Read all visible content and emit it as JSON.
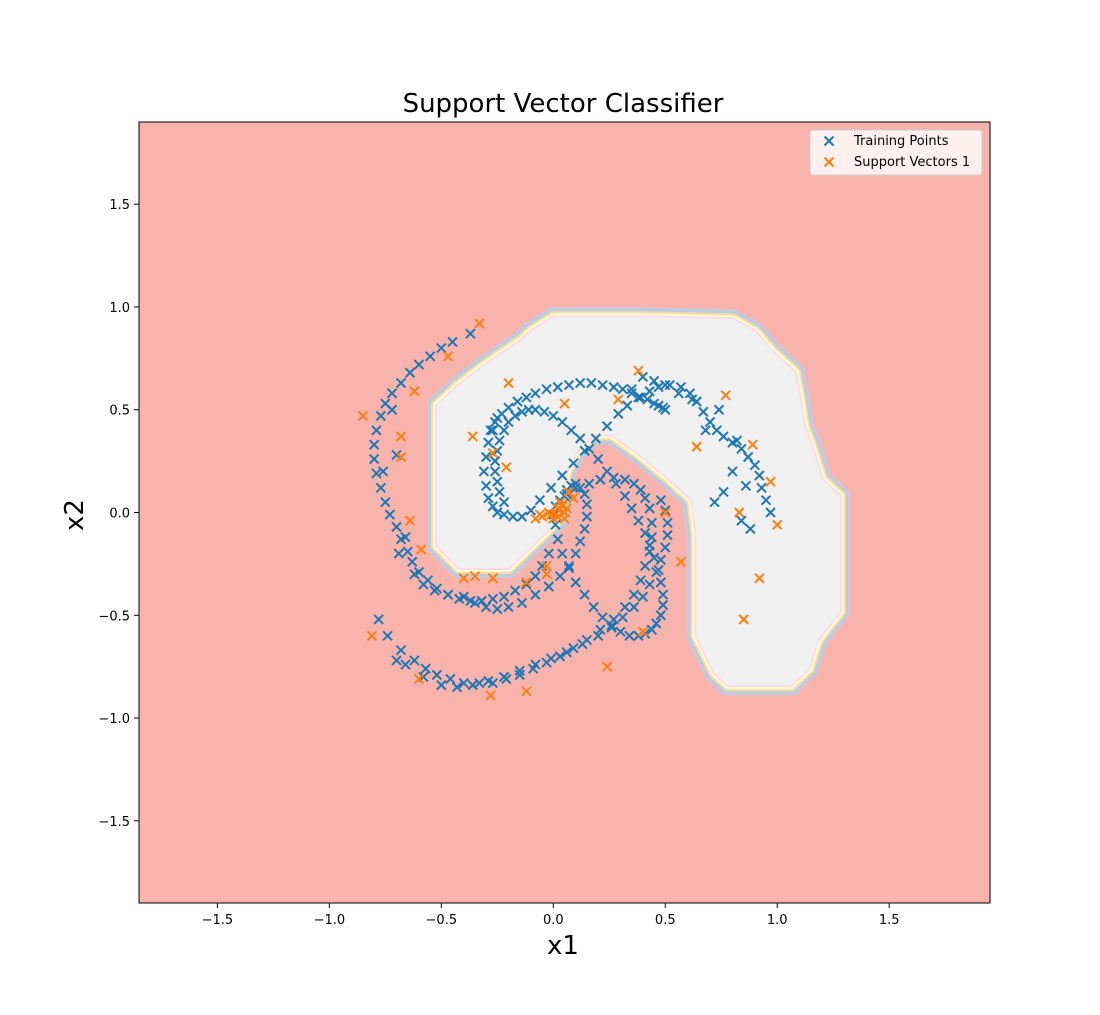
{
  "chart_data": {
    "type": "scatter",
    "title": "Support Vector Classifier",
    "xlabel": "x1",
    "ylabel": "x2",
    "xlim": [
      -1.85,
      1.95
    ],
    "ylim": [
      -1.9,
      1.9
    ],
    "xticks": [
      -1.5,
      -1.0,
      -0.5,
      0.0,
      0.5,
      1.0,
      1.5
    ],
    "yticks": [
      -1.5,
      -1.0,
      -0.5,
      0.0,
      0.5,
      1.0,
      1.5
    ],
    "xtick_labels": [
      "−1.5",
      "−1.0",
      "−0.5",
      "0.0",
      "0.5",
      "1.0",
      "1.5"
    ],
    "ytick_labels": [
      "−1.5",
      "−1.0",
      "−0.5",
      "0.0",
      "0.5",
      "1.0",
      "1.5"
    ],
    "grid": false,
    "legend_position": "top-right",
    "background_region_color": "#f9b3ad",
    "inner_region_color": "#f0f0f0",
    "boundary_colors": [
      "#c9c9dc",
      "#b3cde3",
      "#fed9a6",
      "#ffffcc",
      "#fddaec"
    ],
    "decision_region": [
      [
        -0.52,
        0.52
      ],
      [
        -0.52,
        -0.16
      ],
      [
        -0.42,
        -0.27
      ],
      [
        -0.2,
        -0.27
      ],
      [
        0.02,
        -0.04
      ],
      [
        0.06,
        0.2
      ],
      [
        0.1,
        0.29
      ],
      [
        0.18,
        0.38
      ],
      [
        0.26,
        0.38
      ],
      [
        0.4,
        0.27
      ],
      [
        0.52,
        0.16
      ],
      [
        0.62,
        0.06
      ],
      [
        0.64,
        -0.12
      ],
      [
        0.64,
        -0.4
      ],
      [
        0.64,
        -0.6
      ],
      [
        0.72,
        -0.78
      ],
      [
        0.78,
        -0.84
      ],
      [
        1.06,
        -0.84
      ],
      [
        1.14,
        -0.76
      ],
      [
        1.18,
        -0.62
      ],
      [
        1.28,
        -0.48
      ],
      [
        1.28,
        -0.2
      ],
      [
        1.28,
        0.08
      ],
      [
        1.2,
        0.16
      ],
      [
        1.16,
        0.3
      ],
      [
        1.12,
        0.42
      ],
      [
        1.1,
        0.56
      ],
      [
        1.08,
        0.68
      ],
      [
        0.98,
        0.78
      ],
      [
        0.9,
        0.88
      ],
      [
        0.8,
        0.94
      ],
      [
        0.4,
        0.95
      ],
      [
        0.0,
        0.95
      ],
      [
        -0.1,
        0.88
      ],
      [
        -0.14,
        0.84
      ],
      [
        -0.3,
        0.72
      ],
      [
        -0.42,
        0.62
      ]
    ],
    "series": [
      {
        "name": "Training Points",
        "color": "#1f77b4",
        "marker": "x",
        "x": [
          -0.37,
          -0.45,
          -0.5,
          -0.55,
          -0.6,
          -0.64,
          -0.68,
          -0.72,
          -0.75,
          -0.77,
          -0.79,
          -0.8,
          -0.8,
          -0.79,
          -0.77,
          -0.75,
          -0.73,
          -0.7,
          -0.68,
          -0.65,
          -0.63,
          -0.6,
          -0.56,
          -0.52,
          -0.47,
          -0.42,
          -0.37,
          -0.32,
          -0.27,
          -0.22,
          -0.17,
          -0.12,
          -0.08,
          -0.05,
          -0.02,
          -0.72,
          -0.76,
          -0.7,
          -0.69,
          -0.66,
          -0.62,
          -0.58,
          -0.53,
          -0.47,
          -0.4,
          -0.35,
          -0.3,
          -0.25,
          -0.2,
          -0.14,
          -0.08,
          -0.02,
          0.03,
          0.07,
          0.1,
          0.12,
          0.14,
          0.15,
          0.15,
          0.14,
          0.12,
          0.1,
          0.08,
          0.06,
          0.05,
          0.04,
          0.05,
          -0.78,
          -0.74,
          -0.68,
          -0.62,
          -0.57,
          -0.52,
          -0.46,
          -0.4,
          -0.33,
          -0.27,
          -0.21,
          -0.15,
          -0.09,
          -0.03,
          0.03,
          0.09,
          0.15,
          0.21,
          0.27,
          0.32,
          0.36,
          0.39,
          0.41,
          0.43,
          0.44,
          0.44,
          0.43,
          0.41,
          0.39,
          0.36,
          0.32,
          0.27,
          0.21,
          0.16,
          0.1,
          0.06,
          0.03,
          0.01,
          0.0,
          -0.7,
          -0.66,
          -0.58,
          -0.5,
          -0.43,
          -0.36,
          -0.29,
          -0.22,
          -0.15,
          -0.08,
          -0.01,
          0.06,
          0.13,
          0.2,
          0.26,
          0.31,
          0.36,
          0.4,
          0.43,
          0.46,
          0.48,
          0.5,
          0.51,
          0.51,
          0.5,
          0.48,
          -0.25,
          -0.27,
          -0.29,
          -0.3,
          -0.31,
          -0.3,
          -0.29,
          -0.27,
          -0.25,
          -0.22,
          -0.18,
          -0.14,
          -0.1,
          -0.06,
          -0.01,
          0.04,
          0.09,
          0.14,
          0.19,
          0.24,
          0.29,
          0.33,
          0.38,
          0.43,
          0.47,
          0.52,
          0.57,
          0.61,
          0.64,
          0.67,
          0.7,
          0.73,
          0.76,
          0.8,
          0.84,
          0.87,
          0.9,
          0.92,
          0.93,
          0.95,
          0.97,
          -0.28,
          -0.26,
          -0.23,
          -0.2,
          -0.16,
          -0.12,
          -0.08,
          -0.03,
          0.02,
          0.07,
          0.12,
          0.17,
          0.22,
          0.27,
          0.31,
          0.35,
          0.39,
          0.42,
          0.45,
          0.47,
          0.49,
          0.5,
          -0.22,
          -0.24,
          -0.25,
          -0.26,
          -0.26,
          -0.25,
          -0.24,
          -0.22,
          -0.2,
          -0.17,
          -0.14,
          -0.11,
          -0.08,
          -0.04,
          0.0,
          0.04,
          0.08,
          0.12,
          0.16,
          0.2,
          0.24,
          0.28,
          0.32,
          0.35,
          0.38,
          0.41,
          0.43,
          0.45,
          0.47,
          0.48,
          0.49,
          0.49,
          0.48,
          0.46,
          0.44,
          0.41,
          0.38,
          0.34,
          0.3,
          0.26,
          0.22,
          0.18,
          0.14,
          0.1,
          0.07,
          0.04,
          0.02,
          0.01,
          0.72,
          0.76,
          0.8,
          0.84,
          0.88,
          0.86,
          0.82,
          0.74,
          0.68,
          0.62,
          0.56,
          0.5,
          0.45,
          0.4,
          0.35
        ],
        "y": [
          0.87,
          0.83,
          0.8,
          0.76,
          0.72,
          0.68,
          0.63,
          0.58,
          0.53,
          0.47,
          0.4,
          0.33,
          0.26,
          0.19,
          0.12,
          0.05,
          -0.01,
          -0.07,
          -0.13,
          -0.19,
          -0.24,
          -0.29,
          -0.33,
          -0.37,
          -0.4,
          -0.42,
          -0.43,
          -0.43,
          -0.42,
          -0.41,
          -0.38,
          -0.35,
          -0.31,
          -0.26,
          -0.2,
          0.5,
          0.2,
          0.28,
          -0.2,
          -0.12,
          -0.3,
          -0.35,
          -0.38,
          -0.4,
          -0.41,
          -0.44,
          -0.46,
          -0.47,
          -0.46,
          -0.44,
          -0.4,
          -0.36,
          -0.31,
          -0.26,
          -0.2,
          -0.14,
          -0.08,
          -0.02,
          0.04,
          0.09,
          0.12,
          0.14,
          0.13,
          0.11,
          0.08,
          0.04,
          0.0,
          -0.52,
          -0.6,
          -0.67,
          -0.72,
          -0.76,
          -0.79,
          -0.81,
          -0.83,
          -0.83,
          -0.83,
          -0.81,
          -0.79,
          -0.76,
          -0.73,
          -0.7,
          -0.66,
          -0.62,
          -0.57,
          -0.52,
          -0.46,
          -0.4,
          -0.33,
          -0.26,
          -0.19,
          -0.12,
          -0.05,
          0.02,
          0.07,
          0.11,
          0.14,
          0.16,
          0.17,
          0.16,
          0.14,
          0.12,
          0.09,
          0.06,
          0.03,
          -0.01,
          -0.72,
          -0.74,
          -0.8,
          -0.84,
          -0.85,
          -0.84,
          -0.82,
          -0.8,
          -0.77,
          -0.74,
          -0.71,
          -0.68,
          -0.64,
          -0.6,
          -0.56,
          -0.51,
          -0.46,
          -0.41,
          -0.35,
          -0.29,
          -0.23,
          -0.17,
          -0.11,
          -0.05,
          0.01,
          0.06,
          0.46,
          0.4,
          0.34,
          0.27,
          0.2,
          0.13,
          0.07,
          0.03,
          0.0,
          -0.01,
          -0.02,
          -0.02,
          0.01,
          0.06,
          0.12,
          0.18,
          0.24,
          0.3,
          0.36,
          0.42,
          0.48,
          0.52,
          0.56,
          0.59,
          0.61,
          0.62,
          0.61,
          0.58,
          0.54,
          0.49,
          0.44,
          0.4,
          0.37,
          0.34,
          0.31,
          0.27,
          0.23,
          0.18,
          0.12,
          0.06,
          0.0,
          0.4,
          0.44,
          0.48,
          0.51,
          0.54,
          0.56,
          0.58,
          0.6,
          0.61,
          0.62,
          0.63,
          0.63,
          0.62,
          0.61,
          0.6,
          0.58,
          0.56,
          0.55,
          0.53,
          0.52,
          0.51,
          0.5,
          0.05,
          0.1,
          0.15,
          0.2,
          0.25,
          0.3,
          0.35,
          0.4,
          0.44,
          0.47,
          0.49,
          0.5,
          0.5,
          0.49,
          0.47,
          0.44,
          0.4,
          0.36,
          0.31,
          0.26,
          0.2,
          0.14,
          0.08,
          0.02,
          -0.04,
          -0.1,
          -0.16,
          -0.22,
          -0.28,
          -0.34,
          -0.4,
          -0.45,
          -0.5,
          -0.54,
          -0.57,
          -0.59,
          -0.6,
          -0.6,
          -0.58,
          -0.55,
          -0.51,
          -0.46,
          -0.4,
          -0.34,
          -0.27,
          -0.2,
          -0.13,
          -0.06,
          0.05,
          0.1,
          0.2,
          -0.04,
          -0.08,
          0.13,
          0.35,
          0.5,
          0.4,
          0.55,
          0.58,
          0.62,
          0.64,
          0.66,
          0.6
        ]
      },
      {
        "name": "Support Vectors 1",
        "color": "#ff7f0e",
        "marker": "x",
        "x": [
          -0.33,
          -0.47,
          -0.62,
          -0.68,
          -0.68,
          -0.85,
          -0.64,
          -0.59,
          -0.4,
          -0.36,
          -0.2,
          -0.27,
          -0.81,
          -0.35,
          -0.27,
          -0.12,
          -0.28,
          -0.12,
          -0.6,
          -0.03,
          0.01,
          0.02,
          0.04,
          0.06,
          0.05,
          0.02,
          -0.01,
          0.0,
          0.03,
          -0.05,
          -0.08,
          -0.06,
          0.05,
          -0.02,
          0.04,
          0.09,
          0.07,
          0.38,
          0.29,
          0.05,
          0.64,
          0.77,
          0.89,
          0.97,
          0.83,
          1.0,
          0.92,
          0.85,
          0.5,
          0.57,
          0.4,
          0.24,
          -0.21,
          -0.03
        ],
        "y": [
          0.92,
          0.76,
          0.59,
          0.37,
          0.27,
          0.47,
          -0.04,
          -0.18,
          -0.32,
          0.37,
          0.63,
          0.29,
          -0.6,
          -0.31,
          -0.32,
          -0.34,
          -0.89,
          -0.87,
          -0.81,
          -0.26,
          -0.01,
          0.02,
          0.04,
          0.02,
          0.0,
          -0.02,
          -0.01,
          -0.03,
          0.05,
          -0.02,
          -0.03,
          -0.01,
          -0.03,
          0.0,
          0.03,
          0.07,
          0.1,
          0.69,
          0.55,
          0.53,
          0.32,
          0.57,
          0.33,
          0.15,
          0.0,
          -0.06,
          -0.32,
          -0.52,
          0.0,
          -0.24,
          -0.58,
          -0.75,
          0.22,
          -0.3
        ]
      }
    ]
  }
}
